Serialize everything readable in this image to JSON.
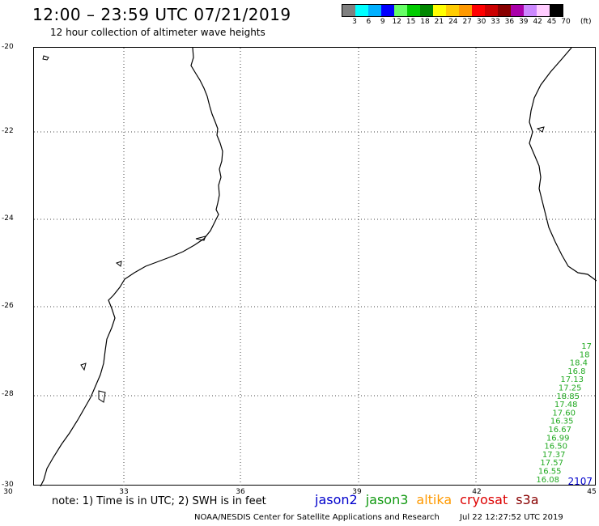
{
  "header": {
    "title": "12:00 – 23:59 UTC 07/21/2019",
    "subtitle": "12 hour collection of altimeter wave heights"
  },
  "colorbar": {
    "colors": [
      "#808080",
      "#00ffff",
      "#00b0ff",
      "#0000ff",
      "#66ff66",
      "#00cc00",
      "#008800",
      "#ffff00",
      "#ffcc00",
      "#ff9900",
      "#ff0000",
      "#cc0000",
      "#880000",
      "#aa00aa",
      "#cc88ff",
      "#ffccff",
      "#000000"
    ],
    "labels": [
      "3",
      "6",
      "9",
      "12",
      "15",
      "18",
      "21",
      "24",
      "27",
      "30",
      "33",
      "36",
      "39",
      "42",
      "45",
      "70"
    ],
    "unit": "(ft)"
  },
  "axes": {
    "lat_labels": [
      "-20",
      "-22",
      "-24",
      "-26",
      "-28",
      "-30"
    ],
    "lon_labels": [
      "30",
      "33",
      "36",
      "39",
      "42",
      "45"
    ]
  },
  "wave_heights": {
    "color": "#22aa22",
    "values": [
      "17",
      "18",
      "18.4",
      "16.8",
      "17.13",
      "17.25",
      "18.85",
      "17.48",
      "17.60",
      "16.35",
      "16.67",
      "16.99",
      "16.50",
      "17.37",
      "17.57",
      "16.55",
      "16.08"
    ]
  },
  "pass_time": {
    "text": "2107",
    "color": "#0000cc"
  },
  "footer": {
    "note": "note: 1) Time is in UTC; 2) SWH is in feet",
    "satellites": [
      {
        "name": "jason2",
        "color": "#0000cc"
      },
      {
        "name": "jason3",
        "color": "#119911"
      },
      {
        "name": "altika",
        "color": "#ff9900"
      },
      {
        "name": "cryosat",
        "color": "#dd0000"
      },
      {
        "name": "s3a",
        "color": "#880000"
      }
    ],
    "credit": "NOAA/NESDIS Center for Satellite Applications and Research",
    "timestamp": "Jul 22 12:27:52 UTC 2019"
  }
}
